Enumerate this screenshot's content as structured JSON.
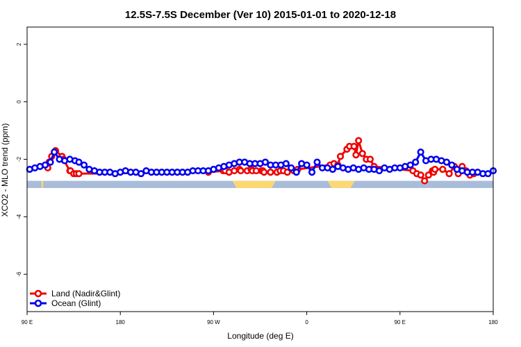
{
  "chart_data": {
    "type": "line",
    "title": "12.5S-7.5S December (Ver 10)   2015-01-01 to 2020-12-18",
    "xlabel": "Longitude (deg E)",
    "ylabel": "XCO2 - MLO trend (ppm)",
    "xlim": [
      90,
      450
    ],
    "ylim": [
      -7.3,
      2.6
    ],
    "x_ticks": [
      {
        "value": 90,
        "label": "90 E"
      },
      {
        "value": 162,
        "label": "180"
      },
      {
        "value": 234,
        "label": "90 W"
      },
      {
        "value": 306,
        "label": "0"
      },
      {
        "value": 378,
        "label": "90 E"
      },
      {
        "value": 450,
        "label": "180"
      }
    ],
    "y_ticks": [
      {
        "value": 2,
        "label": "2"
      },
      {
        "value": 0,
        "label": "0"
      },
      {
        "value": -2,
        "label": "-2"
      },
      {
        "value": -4,
        "label": "-4"
      },
      {
        "value": -6,
        "label": "-6"
      }
    ],
    "grid": false,
    "legend_position": "bottom-left",
    "band": {
      "y_top": -2.75,
      "y_bottom": -3.0,
      "ocean_color": "#a9bcd9",
      "land_color": "#fdd872",
      "land_segments": [
        [
          248.5,
          282
        ],
        [
          101,
          102.5
        ],
        [
          322,
          343
        ]
      ]
    },
    "series": [
      {
        "name": "Land (Nadir&Glint)",
        "color": "#ee0000",
        "x": [
          106,
          107,
          109,
          112,
          117,
          118,
          123,
          123.5,
          126,
          128,
          130,
          230,
          241.5,
          243,
          246,
          250,
          254,
          255,
          260,
          263,
          264,
          267,
          271,
          272,
          273,
          278,
          283,
          285.5,
          288,
          291,
          296,
          299,
          324,
          327,
          330,
          332,
          337,
          339,
          342.5,
          344,
          346,
          349,
          352,
          355,
          358,
          388,
          391,
          394,
          397,
          400,
          403,
          404,
          405,
          411,
          416,
          420,
          423,
          426,
          429,
          432,
          435
        ],
        "y": [
          -2.3,
          -2.1,
          -1.9,
          -1.7,
          -1.9,
          -2.0,
          -2.4,
          -2.4,
          -2.5,
          -2.5,
          -2.5,
          -2.45,
          -2.4,
          -2.4,
          -2.45,
          -2.4,
          -2.35,
          -2.4,
          -2.4,
          -2.35,
          -2.4,
          -2.4,
          -2.4,
          -2.4,
          -2.45,
          -2.45,
          -2.45,
          -2.4,
          -2.4,
          -2.45,
          -2.4,
          -2.35,
          -2.2,
          -2.15,
          -2.2,
          -1.9,
          -1.65,
          -1.55,
          -1.55,
          -1.85,
          -1.35,
          -1.8,
          -2.0,
          -2.0,
          -2.25,
          -2.4,
          -2.5,
          -2.55,
          -2.75,
          -2.55,
          -2.4,
          -2.45,
          -2.35,
          -2.35,
          -2.5,
          -2.25,
          -2.5,
          -2.25,
          -2.4,
          -2.55,
          -2.5
        ]
      },
      {
        "name": "Ocean (Glint)",
        "color": "#0000ee",
        "x": [
          92,
          96,
          100,
          104,
          108,
          111,
          115,
          119,
          123,
          127,
          130,
          134,
          138,
          142,
          146,
          150,
          154,
          158,
          162,
          166,
          170,
          174,
          178,
          182,
          186,
          190,
          194,
          198,
          202,
          206,
          210,
          214,
          218,
          222,
          226,
          230,
          234,
          238,
          242,
          246,
          250,
          254,
          258,
          262,
          266,
          270,
          274,
          278,
          282,
          286,
          290,
          294,
          298,
          302,
          306,
          310,
          314,
          318,
          322,
          326,
          330,
          334,
          338,
          342,
          346,
          350,
          354,
          358,
          362,
          366,
          370,
          374,
          378,
          382,
          386,
          390,
          394,
          398,
          402,
          406,
          410,
          414,
          418,
          422,
          426,
          430,
          434,
          438,
          442,
          446,
          450
        ],
        "y": [
          -2.35,
          -2.3,
          -2.25,
          -2.2,
          -2.1,
          -1.75,
          -2.0,
          -2.05,
          -2.0,
          -2.05,
          -2.1,
          -2.2,
          -2.35,
          -2.4,
          -2.45,
          -2.45,
          -2.45,
          -2.5,
          -2.45,
          -2.4,
          -2.45,
          -2.45,
          -2.5,
          -2.4,
          -2.45,
          -2.45,
          -2.45,
          -2.45,
          -2.45,
          -2.45,
          -2.45,
          -2.45,
          -2.4,
          -2.4,
          -2.4,
          -2.4,
          -2.35,
          -2.3,
          -2.25,
          -2.2,
          -2.15,
          -2.1,
          -2.1,
          -2.15,
          -2.15,
          -2.15,
          -2.1,
          -2.2,
          -2.2,
          -2.2,
          -2.15,
          -2.3,
          -2.45,
          -2.15,
          -2.2,
          -2.45,
          -2.1,
          -2.3,
          -2.3,
          -2.35,
          -2.25,
          -2.3,
          -2.35,
          -2.3,
          -2.35,
          -2.3,
          -2.35,
          -2.35,
          -2.4,
          -2.3,
          -2.35,
          -2.3,
          -2.3,
          -2.25,
          -2.2,
          -2.1,
          -1.75,
          -2.05,
          -2.0,
          -2.0,
          -2.05,
          -2.1,
          -2.2,
          -2.35,
          -2.4,
          -2.45,
          -2.45,
          -2.45,
          -2.5,
          -2.5,
          -2.4
        ]
      }
    ]
  }
}
